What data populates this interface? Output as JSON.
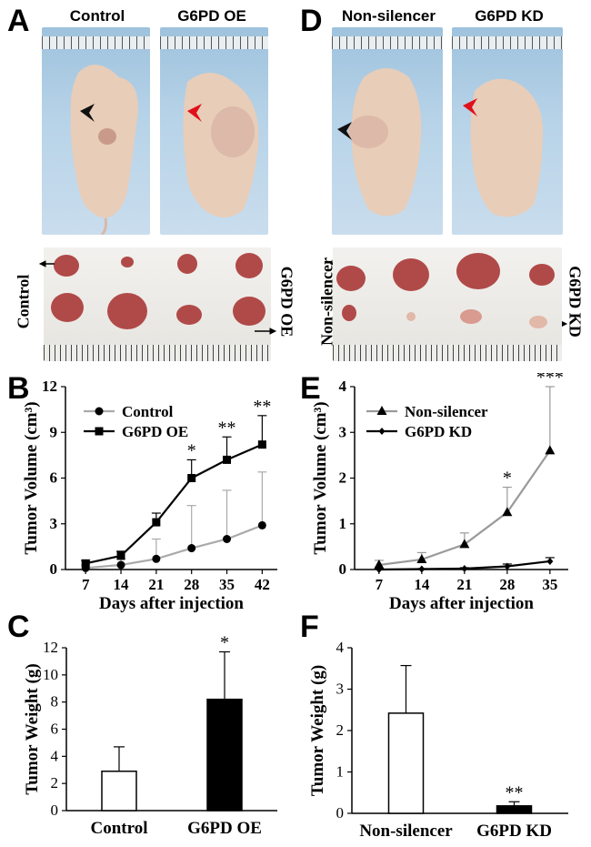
{
  "panels": {
    "A": {
      "letter": "A",
      "left_title": "Control",
      "right_title": "G6PD OE",
      "tray_left_label": "Control",
      "tray_right_label": "G6PD OE"
    },
    "D": {
      "letter": "D",
      "left_title": "Non-silencer",
      "right_title": "G6PD KD",
      "tray_left_label": "Non-silencer",
      "tray_right_label": "G6PD KD"
    },
    "B": {
      "letter": "B"
    },
    "E": {
      "letter": "E"
    },
    "C": {
      "letter": "C"
    },
    "F": {
      "letter": "F"
    }
  },
  "colors": {
    "black_arrow": "#111111",
    "red_arrow": "#e0101a",
    "kd_line": "#000000",
    "nonsilencer_line": "#9a9a9a",
    "control_line": "#aaaaaa",
    "oe_line": "#000000"
  },
  "chart_data": [
    {
      "id": "B",
      "type": "line",
      "xlabel": "Days after injection",
      "ylabel": "Tumor Volume (cm³)",
      "x": [
        7,
        14,
        21,
        28,
        35,
        42
      ],
      "xlim": [
        3,
        45
      ],
      "ylim": [
        0,
        12
      ],
      "yticks": [
        0,
        3,
        6,
        9,
        12
      ],
      "legend_position": "top-left",
      "series": [
        {
          "name": "Control",
          "marker": "circle",
          "values": [
            0.1,
            0.3,
            0.7,
            1.4,
            2.0,
            2.9
          ],
          "error": [
            0.2,
            0.4,
            1.3,
            2.8,
            3.2,
            3.5
          ]
        },
        {
          "name": "G6PD OE",
          "marker": "square",
          "values": [
            0.4,
            0.9,
            3.1,
            6.0,
            7.2,
            8.2
          ],
          "error": [
            0.2,
            0.3,
            0.6,
            1.2,
            1.5,
            1.9
          ]
        }
      ],
      "significance": [
        {
          "x": 28,
          "label": "*"
        },
        {
          "x": 35,
          "label": "**"
        },
        {
          "x": 42,
          "label": "**"
        }
      ]
    },
    {
      "id": "E",
      "type": "line",
      "xlabel": "Days after injection",
      "ylabel": "Tumor Volume (cm³)",
      "x": [
        7,
        14,
        21,
        28,
        35
      ],
      "xlim": [
        3,
        38
      ],
      "ylim": [
        0,
        4
      ],
      "yticks": [
        0,
        1,
        2,
        3,
        4
      ],
      "legend_position": "top-left",
      "series": [
        {
          "name": "Non-silencer",
          "marker": "triangle",
          "values": [
            0.1,
            0.22,
            0.55,
            1.25,
            2.6
          ],
          "error": [
            0.1,
            0.15,
            0.25,
            0.55,
            1.4
          ]
        },
        {
          "name": "G6PD KD",
          "marker": "diamond",
          "values": [
            0.0,
            0.01,
            0.02,
            0.07,
            0.18
          ],
          "error": [
            0.01,
            0.01,
            0.02,
            0.05,
            0.08
          ]
        }
      ],
      "significance": [
        {
          "x": 28,
          "label": "*"
        },
        {
          "x": 35,
          "label": "***"
        }
      ]
    },
    {
      "id": "C",
      "type": "bar",
      "ylabel": "Tumor Weight (g)",
      "ylim": [
        0,
        12
      ],
      "yticks": [
        0,
        2,
        4,
        6,
        8,
        10,
        12
      ],
      "categories": [
        "Control",
        "G6PD OE"
      ],
      "values": [
        2.9,
        8.2
      ],
      "error": [
        1.8,
        3.5
      ],
      "fills": [
        "#ffffff",
        "#000000"
      ],
      "significance": [
        {
          "index": 1,
          "label": "*"
        }
      ]
    },
    {
      "id": "F",
      "type": "bar",
      "ylabel": "Tumor Weight (g)",
      "ylim": [
        0,
        4
      ],
      "yticks": [
        0,
        1,
        2,
        3,
        4
      ],
      "categories": [
        "Non-silencer",
        "G6PD KD"
      ],
      "values": [
        2.42,
        0.18
      ],
      "error": [
        1.15,
        0.1
      ],
      "fills": [
        "#ffffff",
        "#000000"
      ],
      "significance": [
        {
          "index": 1,
          "label": "**"
        }
      ]
    }
  ]
}
